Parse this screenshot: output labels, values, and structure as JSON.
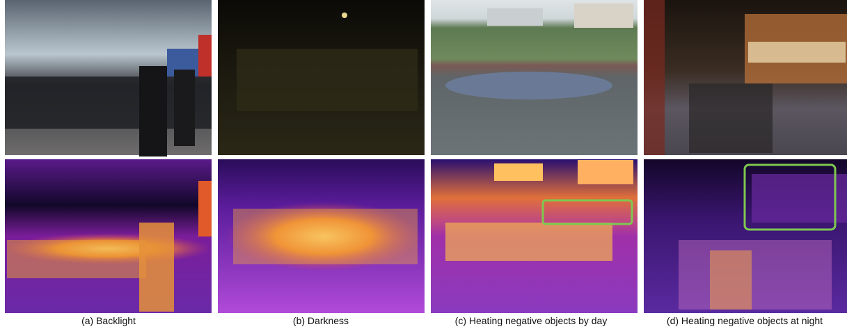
{
  "figure": {
    "panels": [
      {
        "caption": "(a) Backlight"
      },
      {
        "caption": "(b) Darkness"
      },
      {
        "caption": "(c) Heating negative objects  by day"
      },
      {
        "caption": "(d) Heating negative objects at night"
      }
    ]
  }
}
